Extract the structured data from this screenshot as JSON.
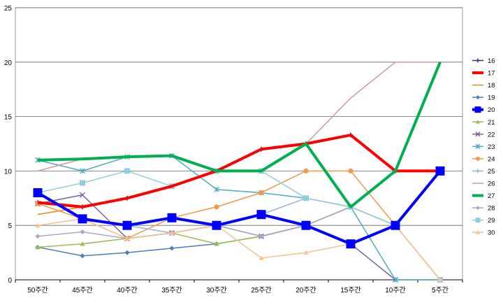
{
  "chart_data": {
    "type": "line",
    "title": "",
    "xlabel": "",
    "ylabel": "",
    "ylim": [
      0,
      25
    ],
    "yticks": [
      0,
      5,
      10,
      15,
      20,
      25
    ],
    "grid": "horizontal",
    "legend_position": "right",
    "categories": [
      "50주간",
      "45주간",
      "40주간",
      "35주간",
      "30주간",
      "25주간",
      "20주간",
      "15주간",
      "10주간",
      "5주간"
    ],
    "series": [
      {
        "name": "16",
        "color": "#4b2d7f",
        "width": 1.5,
        "marker": "plus",
        "values": [
          7.1,
          6.7,
          7.5,
          8.6,
          10.0,
          12.0,
          12.5,
          13.3,
          10.0,
          10.0
        ]
      },
      {
        "name": "17",
        "color": "#ff0000",
        "width": 4,
        "marker": "none",
        "values": [
          7.1,
          6.7,
          7.5,
          8.6,
          10.0,
          12.0,
          12.5,
          13.3,
          10.0,
          10.0
        ]
      },
      {
        "name": "18",
        "color": "#f58220",
        "width": 1.5,
        "marker": "none",
        "values": [
          6.0,
          6.7,
          7.5,
          8.6,
          10.0,
          12.0,
          12.5,
          13.3,
          10.0,
          10.0
        ]
      },
      {
        "name": "19",
        "color": "#4a7ebb",
        "width": 1.5,
        "marker": "diamond",
        "values": [
          3.0,
          2.2,
          2.5,
          2.9,
          3.3,
          4.0,
          5.0,
          6.7,
          10.0,
          10.0
        ]
      },
      {
        "name": "20",
        "color": "#0000ff",
        "width": 4,
        "marker": "square",
        "values": [
          8.0,
          5.6,
          5.0,
          5.7,
          5.0,
          6.0,
          5.0,
          3.3,
          5.0,
          10.0
        ]
      },
      {
        "name": "21",
        "color": "#9bbb59",
        "width": 1.5,
        "marker": "triangle",
        "values": [
          3.0,
          3.3,
          3.8,
          4.3,
          3.3,
          4.0,
          5.0,
          6.7,
          5.0,
          0.0
        ]
      },
      {
        "name": "22",
        "color": "#7f5f9f",
        "width": 1.5,
        "marker": "x",
        "values": [
          7.0,
          7.8,
          3.8,
          4.3,
          5.0,
          4.0,
          5.0,
          3.3,
          0.0,
          0.0
        ]
      },
      {
        "name": "23",
        "color": "#4bacc6",
        "width": 1.5,
        "marker": "star",
        "values": [
          11.0,
          10.0,
          11.3,
          11.4,
          8.3,
          8.0,
          7.5,
          6.7,
          0.0,
          0.0
        ]
      },
      {
        "name": "24",
        "color": "#f79646",
        "width": 1.5,
        "marker": "circle",
        "values": [
          7.0,
          5.6,
          3.8,
          5.7,
          6.7,
          8.0,
          10.0,
          10.0,
          5.0,
          0.0
        ]
      },
      {
        "name": "25",
        "color": "#95b3d7",
        "width": 1.5,
        "marker": "plus",
        "values": [
          8.0,
          5.6,
          5.0,
          4.3,
          5.0,
          6.0,
          7.5,
          6.7,
          5.0,
          10.0
        ]
      },
      {
        "name": "26",
        "color": "#d99694",
        "width": 1.5,
        "marker": "none",
        "values": [
          10.0,
          11.1,
          11.3,
          11.4,
          10.0,
          12.0,
          12.5,
          16.7,
          20.0,
          20.0
        ]
      },
      {
        "name": "27",
        "color": "#00b050",
        "width": 4,
        "marker": "none",
        "values": [
          11.0,
          11.1,
          11.3,
          11.4,
          10.0,
          10.0,
          12.5,
          6.7,
          10.0,
          20.0
        ]
      },
      {
        "name": "28",
        "color": "#b3a2c7",
        "width": 1.5,
        "marker": "diamond",
        "values": [
          4.0,
          4.4,
          3.8,
          4.3,
          5.0,
          4.0,
          5.0,
          6.7,
          5.0,
          10.0
        ]
      },
      {
        "name": "29",
        "color": "#93cddd",
        "width": 1.5,
        "marker": "square",
        "values": [
          8.0,
          8.9,
          10.0,
          8.6,
          10.0,
          10.0,
          7.5,
          6.7,
          5.0,
          0.0
        ]
      },
      {
        "name": "30",
        "color": "#fac090",
        "width": 1.5,
        "marker": "triangle",
        "values": [
          5.0,
          5.6,
          3.8,
          4.3,
          5.0,
          2.0,
          2.5,
          3.3,
          5.0,
          0.0
        ]
      }
    ]
  }
}
